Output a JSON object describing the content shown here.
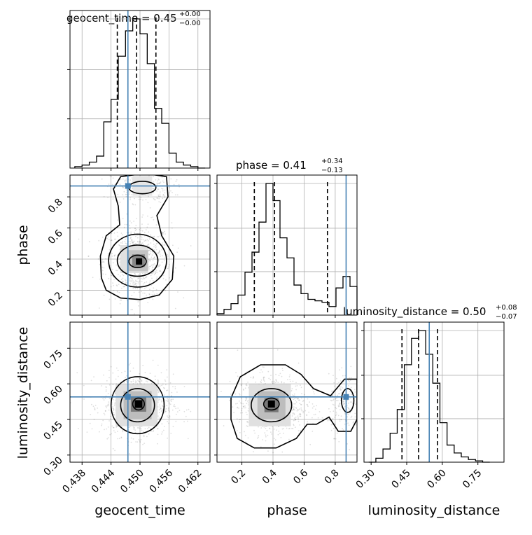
{
  "chart_data": {
    "type": "corner",
    "parameters": [
      "geocent_time",
      "phase",
      "luminosity_distance"
    ],
    "truths": {
      "geocent_time": 0.4475,
      "phase": 0.87,
      "luminosity_distance": 0.545
    },
    "axis_ranges": {
      "geocent_time": [
        0.4355,
        0.4645
      ],
      "phase": [
        0.04,
        0.94
      ],
      "luminosity_distance": [
        0.27,
        0.86
      ]
    },
    "ticks": {
      "geocent_time": [
        "0.438",
        "0.444",
        "0.450",
        "0.456",
        "0.462"
      ],
      "phase_x": [
        "0.2",
        "0.4",
        "0.6",
        "0.8"
      ],
      "phase_y": [
        "0.2",
        "0.4",
        "0.6",
        "0.8"
      ],
      "luminosity_distance_x": [
        "0.30",
        "0.45",
        "0.60",
        "0.75"
      ],
      "luminosity_distance_y": [
        "0.30",
        "0.45",
        "0.60",
        "0.75"
      ]
    },
    "titles": [
      {
        "param": "geocent_time",
        "label": "geocent_time = 0.45",
        "plus": "+0.00",
        "minus": "−0.00"
      },
      {
        "param": "phase",
        "label": "phase = 0.41",
        "plus": "+0.34",
        "minus": "−0.13"
      },
      {
        "param": "luminosity_distance",
        "label": "luminosity_distance = 0.50",
        "plus": "+0.08",
        "minus": "−0.07"
      }
    ],
    "axis_labels": {
      "x": [
        "geocent_time",
        "phase",
        "luminosity_distance"
      ],
      "y": [
        "phase",
        "luminosity_distance"
      ]
    },
    "histograms": {
      "geocent_time": {
        "edges": [
          0.4365,
          0.438,
          0.4395,
          0.441,
          0.4425,
          0.444,
          0.4455,
          0.447,
          0.4485,
          0.45,
          0.4515,
          0.453,
          0.4545,
          0.456,
          0.4575,
          0.459,
          0.4605,
          0.462,
          0.4635
        ],
        "counts": [
          1,
          2,
          4,
          8,
          31,
          46,
          75,
          92,
          100,
          90,
          70,
          40,
          30,
          10,
          4,
          2,
          1,
          0
        ],
        "quantiles": [
          0.4453,
          0.4493,
          0.4533
        ]
      },
      "phase": {
        "edges": [
          0.04,
          0.085,
          0.13,
          0.175,
          0.22,
          0.265,
          0.31,
          0.355,
          0.4,
          0.445,
          0.49,
          0.535,
          0.58,
          0.625,
          0.67,
          0.715,
          0.76,
          0.805,
          0.85,
          0.895,
          0.94
        ],
        "counts": [
          1,
          4,
          8,
          14,
          30,
          44,
          65,
          92,
          80,
          54,
          40,
          21,
          15,
          11,
          10,
          9,
          6,
          19,
          27,
          20
        ],
        "quantiles": [
          0.28,
          0.41,
          0.75
        ]
      },
      "luminosity_distance": {
        "edges": [
          0.29,
          0.32,
          0.35,
          0.38,
          0.41,
          0.44,
          0.47,
          0.5,
          0.53,
          0.56,
          0.59,
          0.62,
          0.65,
          0.68,
          0.71,
          0.74,
          0.77,
          0.8
        ],
        "counts": [
          0,
          3,
          10,
          22,
          40,
          74,
          94,
          100,
          82,
          60,
          30,
          13,
          7,
          4,
          2,
          1,
          0
        ],
        "quantiles": [
          0.43,
          0.5,
          0.58
        ]
      }
    }
  }
}
